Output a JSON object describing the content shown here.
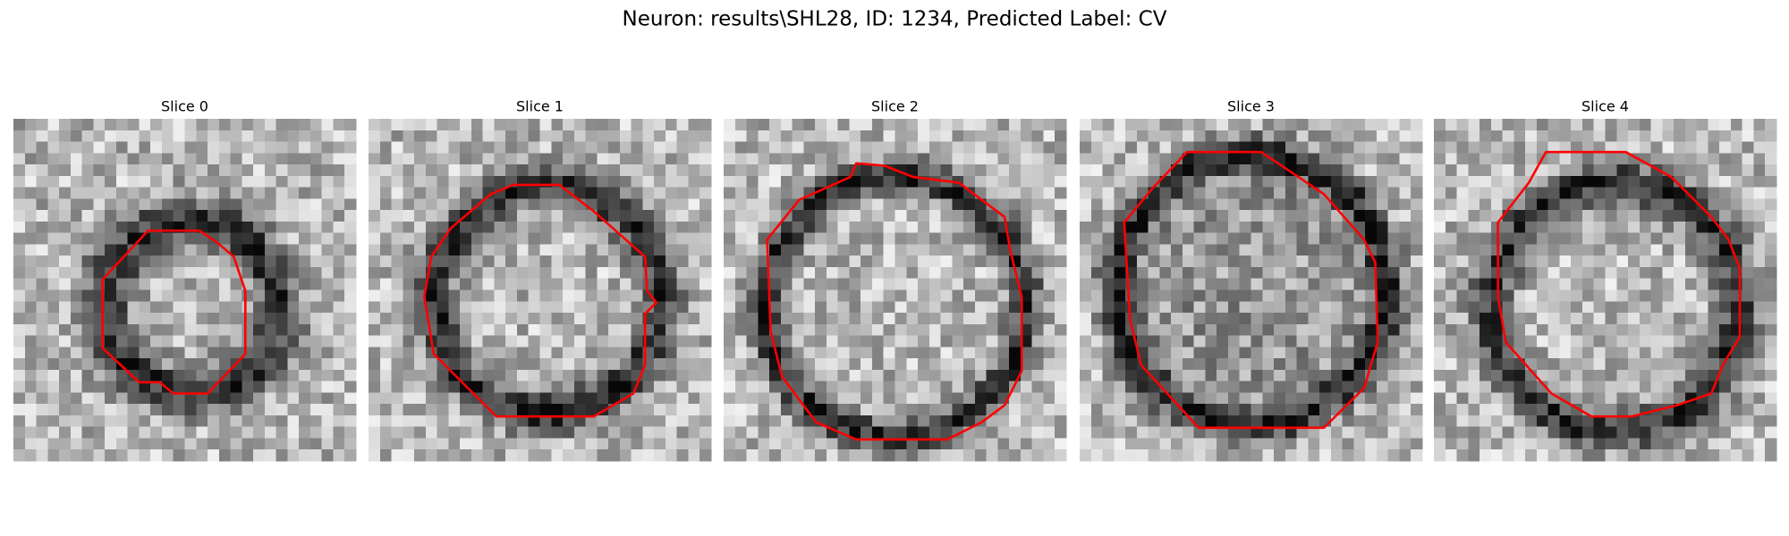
{
  "title": "Neuron: results\\SHL28, ID: 1234, Predicted Label: CV",
  "panels": [
    {
      "title": "Slice 0"
    },
    {
      "title": "Slice 1"
    },
    {
      "title": "Slice 2"
    },
    {
      "title": "Slice 3"
    },
    {
      "title": "Slice 4"
    }
  ]
}
